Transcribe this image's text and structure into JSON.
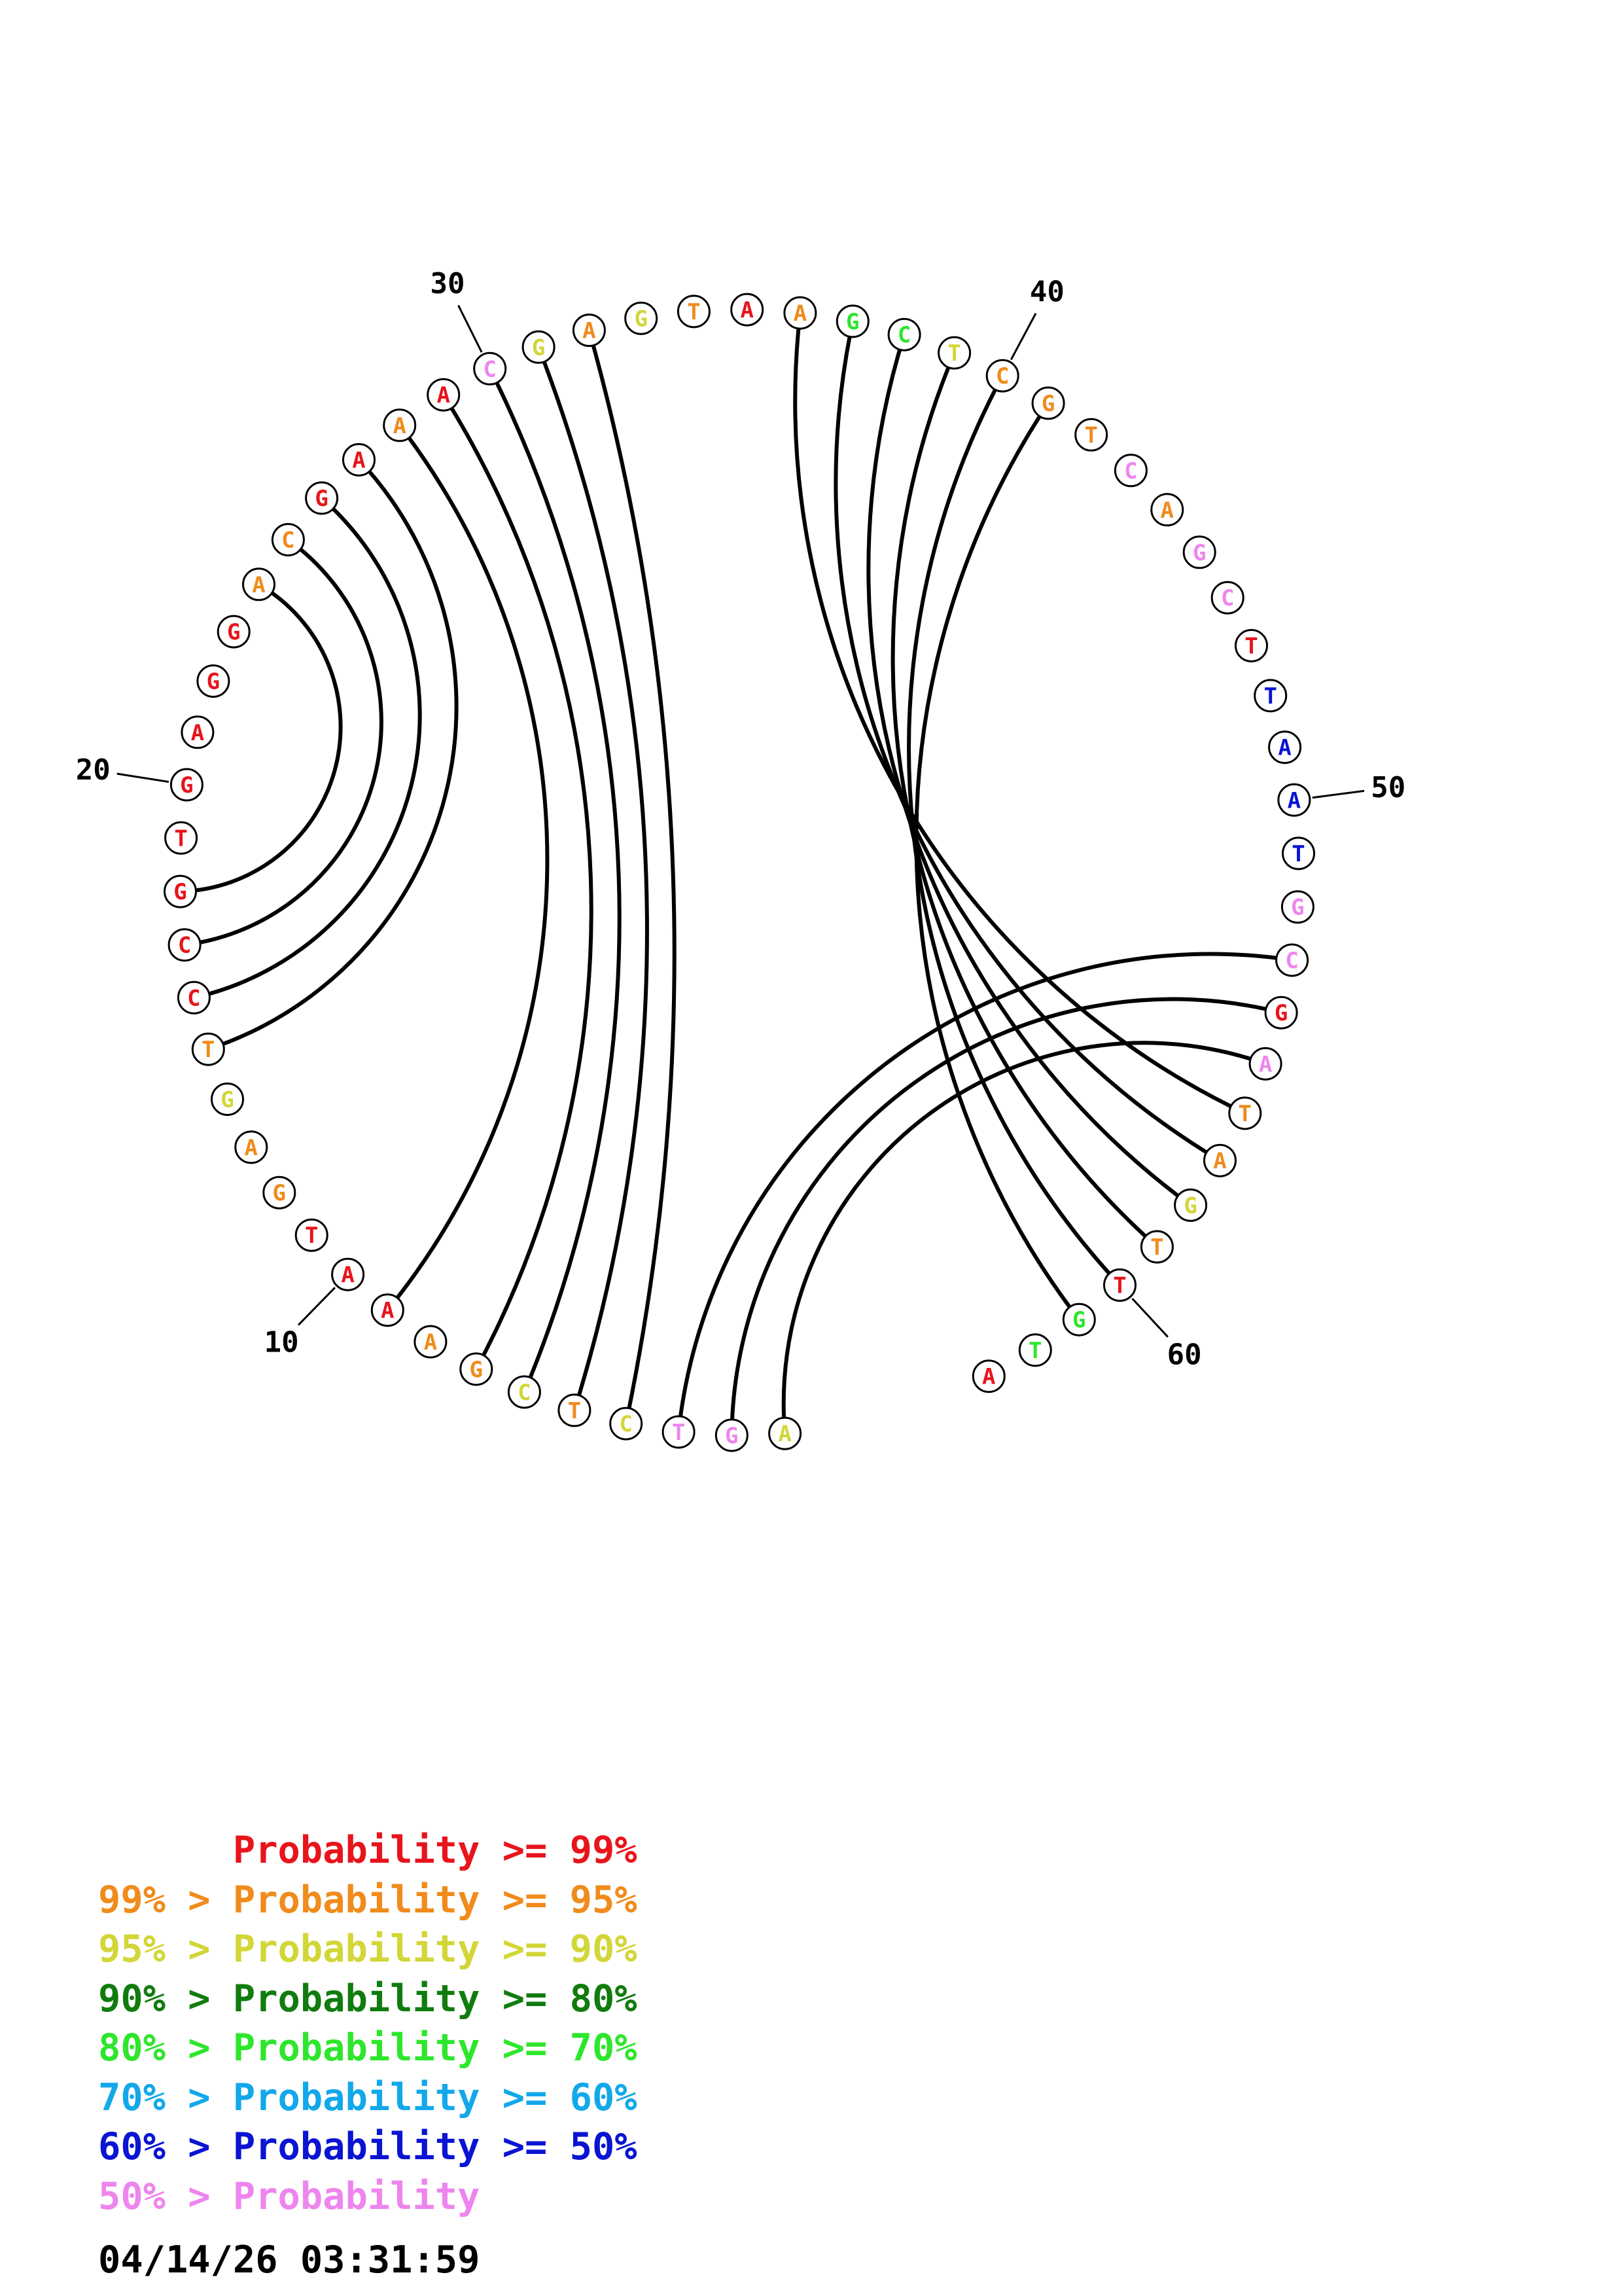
{
  "sequence": [
    "A",
    "G",
    "T",
    "C",
    "T",
    "C",
    "G",
    "A",
    "A",
    "A",
    "T",
    "G",
    "A",
    "G",
    "T",
    "C",
    "C",
    "G",
    "T",
    "G",
    "A",
    "G",
    "G",
    "A",
    "C",
    "G",
    "A",
    "A",
    "A",
    "C",
    "G",
    "A",
    "G",
    "T",
    "A",
    "A",
    "G",
    "C",
    "T",
    "C",
    "G",
    "T",
    "C",
    "A",
    "G",
    "C",
    "T",
    "T",
    "A",
    "A",
    "T",
    "G",
    "C",
    "G",
    "A",
    "T",
    "A",
    "G",
    "T",
    "T",
    "G",
    "T",
    "A"
  ],
  "probability_classes": [
    2,
    7,
    7,
    2,
    1,
    2,
    1,
    1,
    0,
    0,
    0,
    1,
    1,
    2,
    1,
    0,
    0,
    0,
    0,
    0,
    0,
    0,
    0,
    1,
    1,
    0,
    0,
    1,
    0,
    7,
    2,
    1,
    2,
    1,
    0,
    1,
    4,
    4,
    2,
    1,
    1,
    1,
    7,
    1,
    7,
    7,
    0,
    6,
    6,
    6,
    6,
    7,
    7,
    0,
    7,
    1,
    1,
    2,
    1,
    0,
    4,
    4,
    0
  ],
  "pairs": [
    [
      1,
      55
    ],
    [
      2,
      54
    ],
    [
      3,
      53
    ],
    [
      4,
      32
    ],
    [
      5,
      31
    ],
    [
      6,
      30
    ],
    [
      7,
      29
    ],
    [
      9,
      28
    ],
    [
      15,
      27
    ],
    [
      16,
      26
    ],
    [
      17,
      25
    ],
    [
      18,
      24
    ],
    [
      41,
      61
    ],
    [
      40,
      60
    ],
    [
      39,
      59
    ],
    [
      38,
      58
    ],
    [
      37,
      57
    ],
    [
      36,
      56
    ]
  ],
  "position_labels": [
    "10",
    "20",
    "30",
    "40",
    "50",
    "60"
  ],
  "legend": [
    {
      "prefix": "    ",
      "text": "Probability >= 99%",
      "color": "#e8141b"
    },
    {
      "prefix": "99% > ",
      "text": "Probability >= 95%",
      "color": "#f08b1c"
    },
    {
      "prefix": "95% > ",
      "text": "Probability >= 90%",
      "color": "#d2d637"
    },
    {
      "prefix": "90% > ",
      "text": "Probability >= 80%",
      "color": "#117c0e"
    },
    {
      "prefix": "80% > ",
      "text": "Probability >= 70%",
      "color": "#2ee62c"
    },
    {
      "prefix": "70% > ",
      "text": "Probability >= 60%",
      "color": "#12a8ea"
    },
    {
      "prefix": "60% > ",
      "text": "Probability >= 50%",
      "color": "#0a14d2"
    },
    {
      "prefix": "50% > ",
      "text": "Probability",
      "color": "#ee85ee"
    }
  ],
  "timestamp": "04/14/26 03:31:59"
}
